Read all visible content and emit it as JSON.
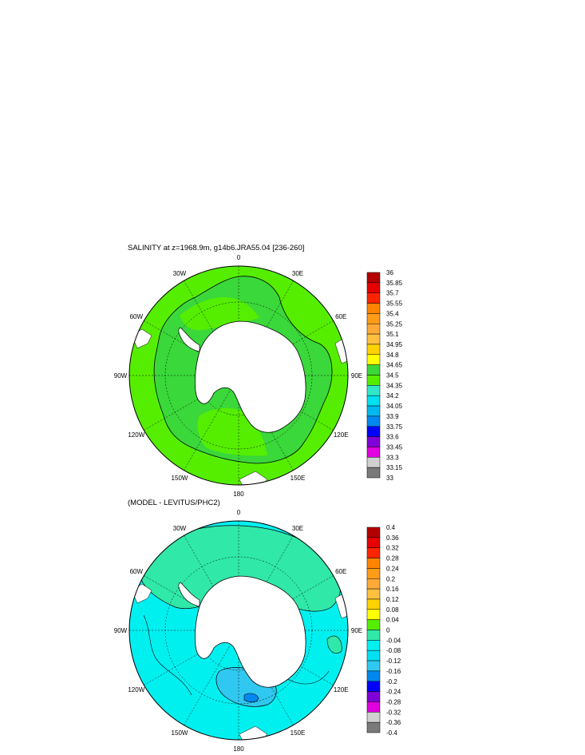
{
  "chart_data": [
    {
      "type": "heatmap",
      "projection": "south-polar-stereographic",
      "title": "SALINITY at z=1968.9m, g14b6.JRA55.04 [236-260]",
      "lon_labels": [
        "0",
        "30E",
        "60E",
        "90E",
        "120E",
        "150E",
        "180",
        "150W",
        "120W",
        "90W",
        "60W",
        "30W"
      ],
      "colorbar": {
        "labels": [
          "36",
          "35.85",
          "35.7",
          "35.55",
          "35.4",
          "35.25",
          "35.1",
          "34.95",
          "34.8",
          "34.65",
          "34.5",
          "34.35",
          "34.2",
          "34.05",
          "33.9",
          "33.75",
          "33.6",
          "33.45",
          "33.3",
          "33.15",
          "33"
        ],
        "colors": [
          "#b40000",
          "#e60000",
          "#ff2400",
          "#ff8400",
          "#ff9c18",
          "#ffaa38",
          "#ffc040",
          "#ffd200",
          "#ffff00",
          "#3ad83a",
          "#55ee00",
          "#30e8c8",
          "#00e0f0",
          "#00b8f0",
          "#0088f0",
          "#0000ff",
          "#8000d8",
          "#e000e0",
          "#d0d0d0",
          "#7a7a7a"
        ]
      },
      "regions": [
        {
          "name": "34.5",
          "color": "#55ee00"
        },
        {
          "name": "34.65",
          "color": "#3ad83a"
        }
      ]
    },
    {
      "type": "heatmap",
      "projection": "south-polar-stereographic",
      "title": "(MODEL - LEVITUS/PHC2)",
      "lon_labels": [
        "0",
        "30E",
        "60E",
        "90E",
        "120E",
        "150E",
        "180",
        "150W",
        "120W",
        "90W",
        "60W",
        "30W"
      ],
      "colorbar": {
        "labels": [
          "0.4",
          "0.36",
          "0.32",
          "0.28",
          "0.24",
          "0.2",
          "0.16",
          "0.12",
          "0.08",
          "0.04",
          "0",
          "-0.04",
          "-0.08",
          "-0.12",
          "-0.16",
          "-0.2",
          "-0.24",
          "-0.28",
          "-0.32",
          "-0.36",
          "-0.4"
        ],
        "colors": [
          "#b40000",
          "#e60000",
          "#ff2400",
          "#ff8400",
          "#ff9c18",
          "#ffaa38",
          "#ffc040",
          "#ffd200",
          "#ffff00",
          "#55ee00",
          "#30e8a8",
          "#00f0f0",
          "#00e0f0",
          "#30c8f0",
          "#0088f0",
          "#0000ff",
          "#8000d8",
          "#e000e0",
          "#d0d0d0",
          "#7a7a7a"
        ]
      },
      "regions": [
        {
          "name": "0 to -0.04",
          "color": "#30e8a8"
        },
        {
          "name": "-0.04 to -0.08",
          "color": "#00f0f0"
        },
        {
          "name": "-0.12 to -0.16",
          "color": "#30c8f0"
        }
      ]
    }
  ]
}
